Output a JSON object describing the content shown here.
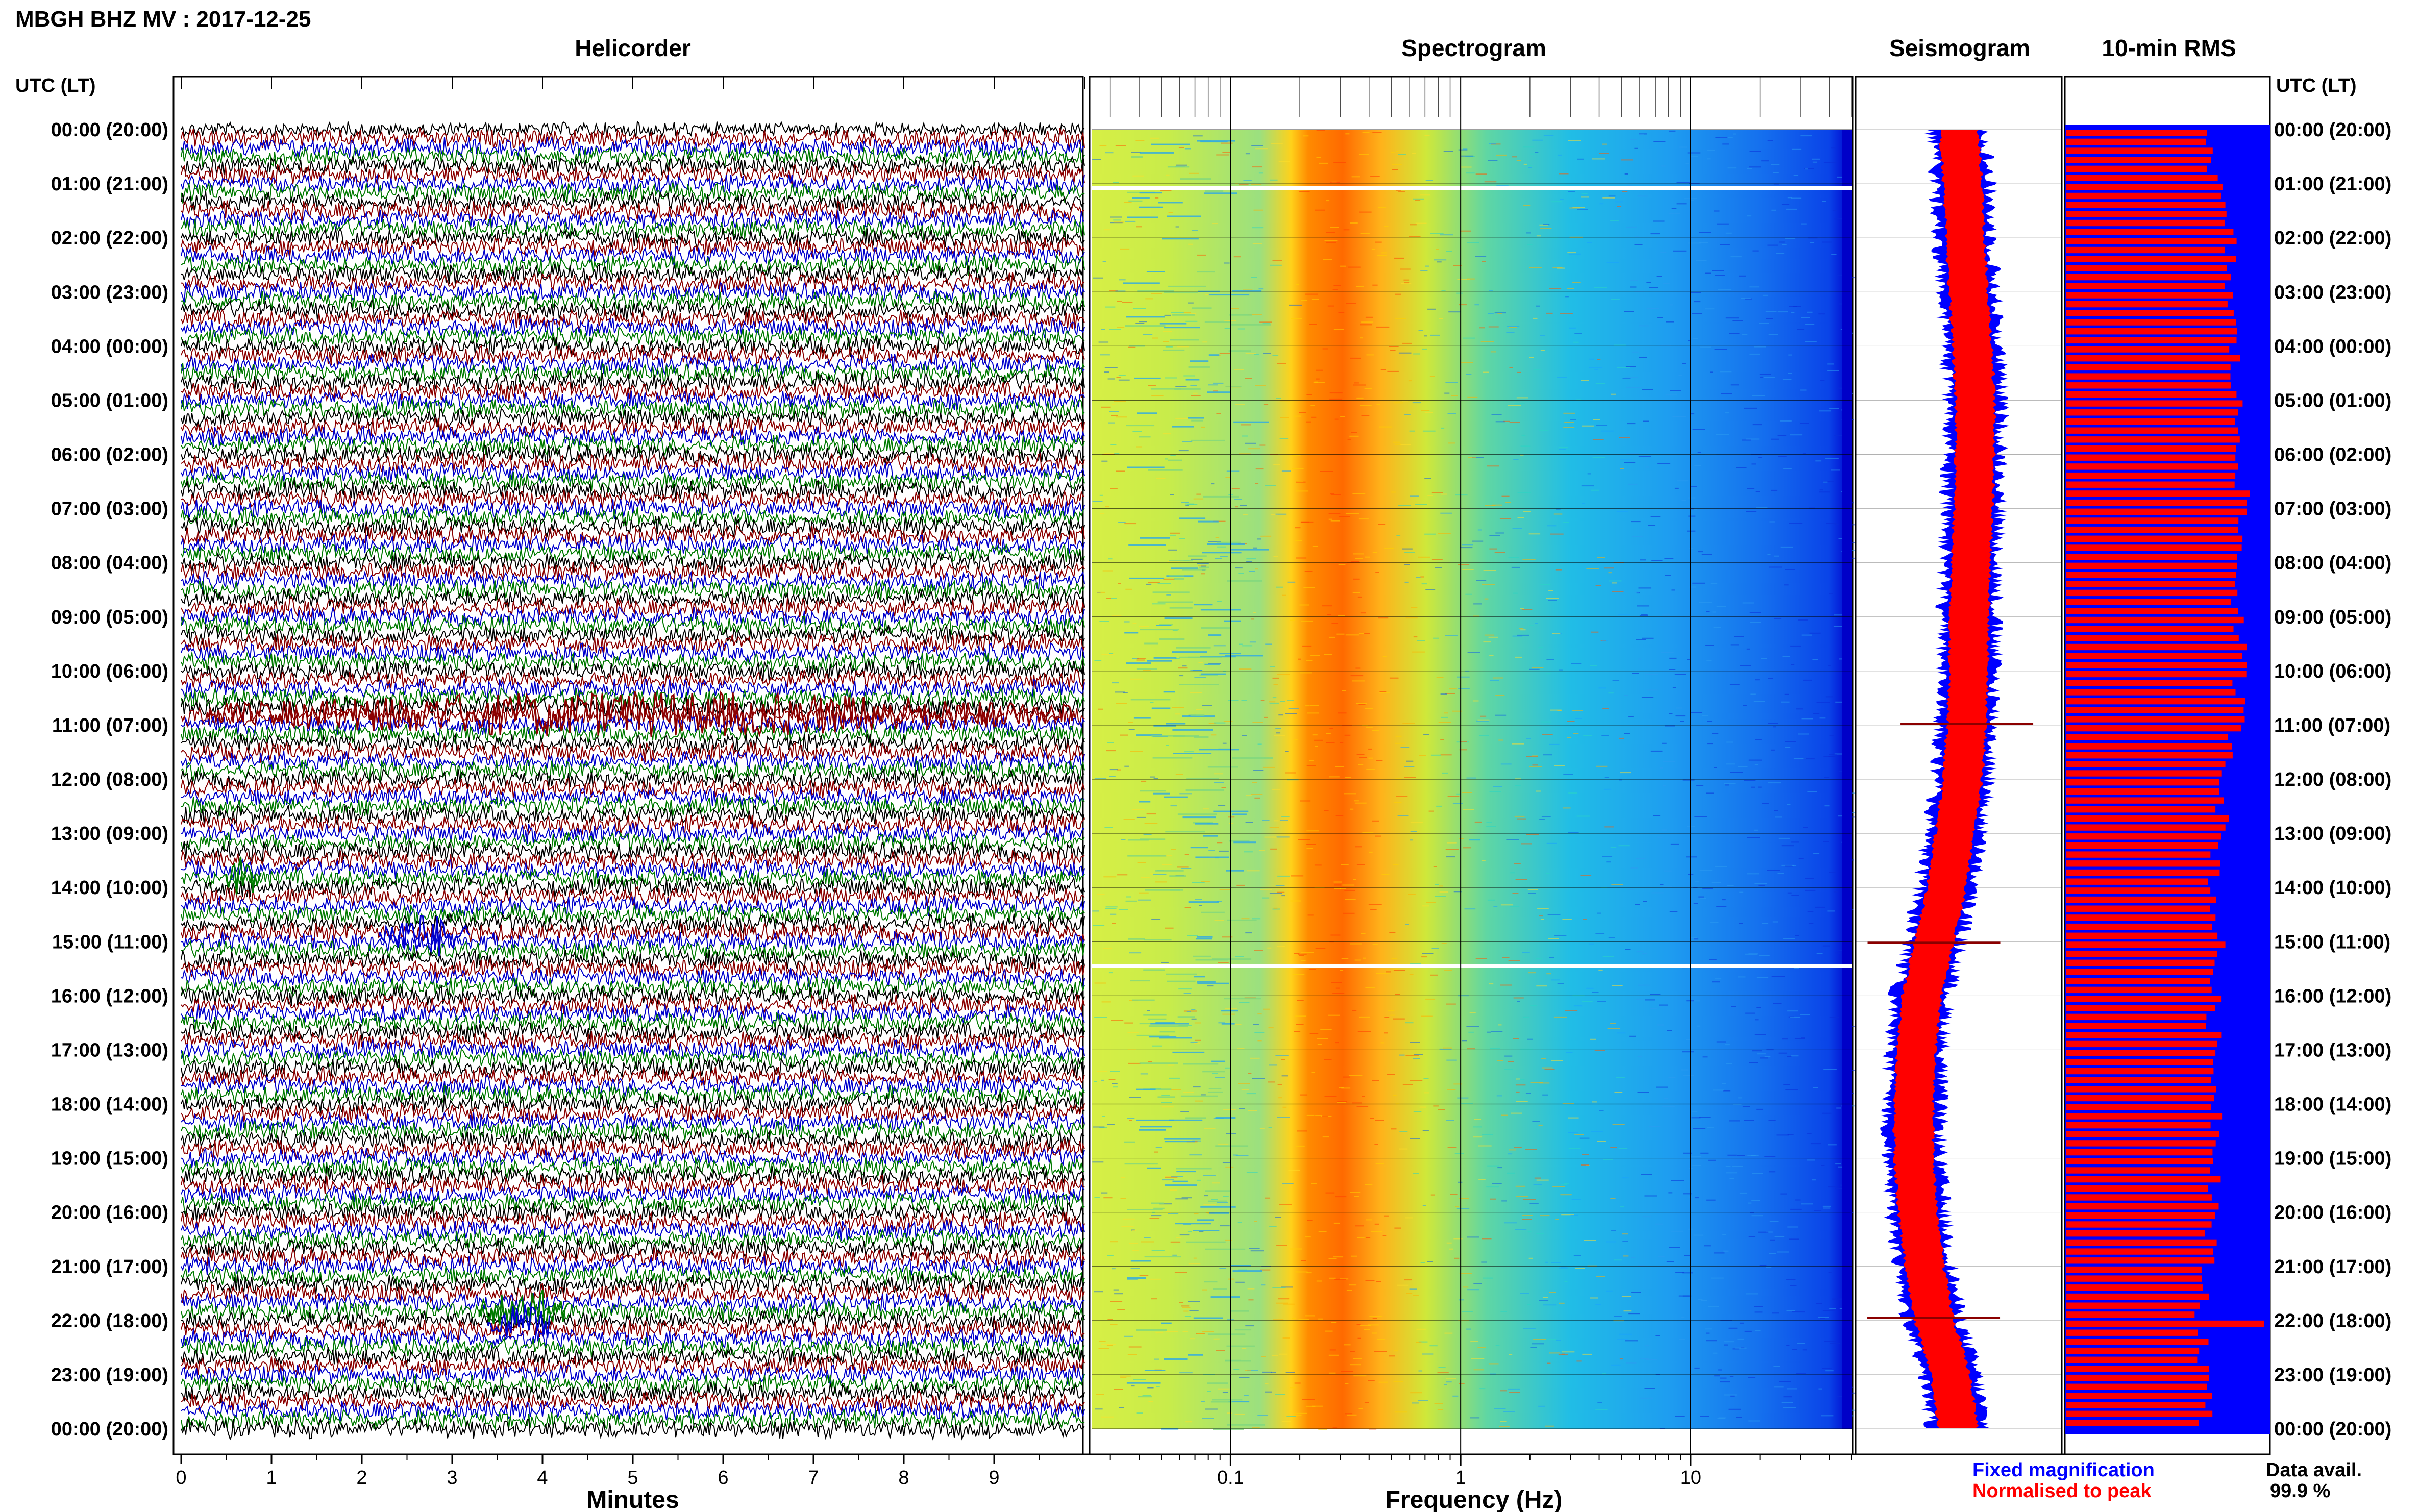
{
  "figure": {
    "title": "MBGH BHZ MV : 2017-12-25",
    "utc_header": "UTC (LT)",
    "data_avail_label": "Data avail.",
    "data_avail_value": "99.9 %"
  },
  "colors": {
    "trace_black": "#000000",
    "trace_red": "#8b0000",
    "trace_blue": "#0000cd",
    "trace_green": "#007a00",
    "rms_fixed": "#0000ff",
    "rms_peak": "#ff0000",
    "gap": "#ffffff"
  },
  "time_labels": [
    "00:00 (20:00)",
    "01:00 (21:00)",
    "02:00 (22:00)",
    "03:00 (23:00)",
    "04:00 (00:00)",
    "05:00 (01:00)",
    "06:00 (02:00)",
    "07:00 (03:00)",
    "08:00 (04:00)",
    "09:00 (05:00)",
    "10:00 (06:00)",
    "11:00 (07:00)",
    "12:00 (08:00)",
    "13:00 (09:00)",
    "14:00 (10:00)",
    "15:00 (11:00)",
    "16:00 (12:00)",
    "17:00 (13:00)",
    "18:00 (14:00)",
    "19:00 (15:00)",
    "20:00 (16:00)",
    "21:00 (17:00)",
    "22:00 (18:00)",
    "23:00 (19:00)",
    "00:00 (20:00)"
  ],
  "chart_data": [
    {
      "panel": "helicorder",
      "type": "line",
      "title": "Helicorder",
      "xlabel": "Minutes",
      "x_ticks": [
        "0",
        "1",
        "2",
        "3",
        "4",
        "5",
        "6",
        "7",
        "8",
        "9"
      ],
      "xlim": [
        0,
        10
      ],
      "rows_per_hour": 6,
      "hours": 24,
      "trace_color_cycle": [
        "black",
        "red",
        "blue",
        "green"
      ],
      "events": [
        {
          "hour": 10.8,
          "minute_start": 0.3,
          "minute_end": 9.9,
          "color": "red",
          "note": ""
        },
        {
          "hour": 13.8,
          "minute_start": 0.5,
          "minute_end": 0.9,
          "color": "green",
          "note": ""
        },
        {
          "hour": 14.9,
          "minute_start": 2.2,
          "minute_end": 3.2,
          "color": "blue",
          "note": ""
        },
        {
          "hour": 21.8,
          "minute_start": 3.3,
          "minute_end": 4.3,
          "color": "green",
          "note": ""
        },
        {
          "hour": 22.1,
          "minute_start": 3.4,
          "minute_end": 4.1,
          "color": "blue",
          "note": ""
        }
      ]
    },
    {
      "panel": "spectrogram",
      "type": "heatmap",
      "title": "Spectrogram",
      "xlabel": "Frequency (Hz)",
      "x_scale": "log",
      "x_ticks": [
        "0.1",
        "1",
        "10"
      ],
      "xlim_hz": [
        0.025,
        50
      ],
      "peak_band_hz": [
        0.2,
        0.5
      ],
      "gaps_hours": [
        1.08,
        15.45
      ]
    },
    {
      "panel": "seismogram",
      "type": "area",
      "title": "Seismogram",
      "series": [
        {
          "name": "Fixed magnification",
          "color": "blue"
        },
        {
          "name": "Normalised to peak",
          "color": "red"
        }
      ],
      "center_offset_by_hour": [
        0,
        0.05,
        0.08,
        0.12,
        0.17,
        0.2,
        0.2,
        0.18,
        0.15,
        0.13,
        0.12,
        0.1,
        0.05,
        -0.05,
        -0.15,
        -0.3,
        -0.45,
        -0.52,
        -0.55,
        -0.55,
        -0.5,
        -0.42,
        -0.3,
        -0.1,
        0
      ],
      "spikes_hours": [
        10.98,
        15.02,
        21.95
      ]
    },
    {
      "panel": "rms",
      "type": "bar",
      "title": "10-min RMS",
      "orientation": "horizontal",
      "interval_minutes": 10,
      "hours": 24,
      "red_level_by_hour": [
        0.72,
        0.75,
        0.82,
        0.82,
        0.84,
        0.85,
        0.88,
        0.88,
        0.86,
        0.86,
        0.87,
        0.86,
        0.8,
        0.77,
        0.74,
        0.76,
        0.74,
        0.74,
        0.76,
        0.76,
        0.74,
        0.7,
        0.68,
        0.7,
        0.7
      ],
      "spike_hours": [
        21.95
      ]
    }
  ]
}
